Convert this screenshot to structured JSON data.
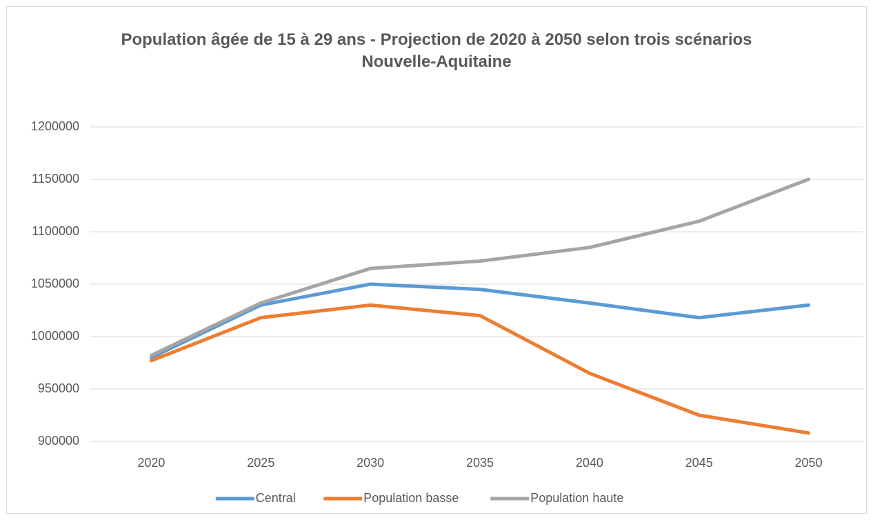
{
  "chart_data": {
    "type": "line",
    "title": "Population âgée de 15 à 29 ans - Projection de 2020 à 2050 selon trois scénarios",
    "subtitle": "Nouvelle-Aquitaine",
    "categories": [
      "2020",
      "2025",
      "2030",
      "2035",
      "2040",
      "2045",
      "2050"
    ],
    "series": [
      {
        "name": "Central",
        "color": "#5b9bd5",
        "values": [
          980000,
          1030000,
          1050000,
          1045000,
          1032000,
          1018000,
          1030000
        ]
      },
      {
        "name": "Population basse",
        "color": "#ed7d31",
        "values": [
          977000,
          1018000,
          1030000,
          1020000,
          965000,
          925000,
          908000
        ]
      },
      {
        "name": "Population haute",
        "color": "#a5a5a5",
        "values": [
          982000,
          1032000,
          1065000,
          1072000,
          1085000,
          1110000,
          1150000
        ]
      }
    ],
    "ylim": [
      900000,
      1200000
    ],
    "yticks": [
      900000,
      950000,
      1000000,
      1050000,
      1100000,
      1150000,
      1200000
    ],
    "grid": true,
    "legend": "bottom"
  }
}
